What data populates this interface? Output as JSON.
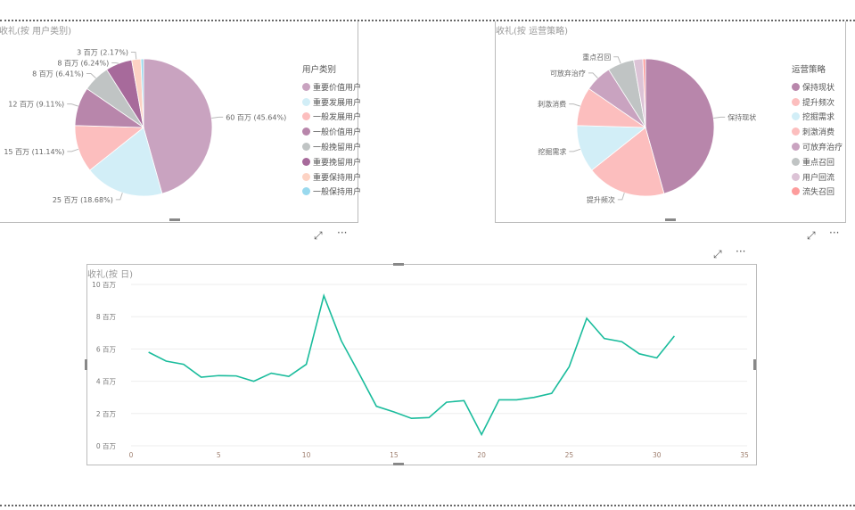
{
  "pie1": {
    "title": "收礼(按 用户类别)",
    "legend_title": "用户类别",
    "slices": [
      {
        "name": "重要价值用户",
        "value": 60,
        "pct": 45.64,
        "label": "60 百万 (45.64%)",
        "color": "#c9a3c0"
      },
      {
        "name": "重要发展用户",
        "value": 25,
        "pct": 18.68,
        "label": "25 百万 (18.68%)",
        "color": "#d2eef7"
      },
      {
        "name": "一般发展用户",
        "value": 15,
        "pct": 11.14,
        "label": "15 百万 (11.14%)",
        "color": "#fcbebe"
      },
      {
        "name": "一般价值用户",
        "value": 12,
        "pct": 9.11,
        "label": "12 百万 (9.11%)",
        "color": "#b886ab"
      },
      {
        "name": "一般挽留用户",
        "value": 8,
        "pct": 6.41,
        "label": "8 百万 (6.41%)",
        "color": "#c0c4c4"
      },
      {
        "name": "重要挽留用户",
        "value": 8,
        "pct": 6.24,
        "label": "8 百万 (6.24%)",
        "color": "#a76a9b"
      },
      {
        "name": "重要保持用户",
        "value": 3,
        "pct": 2.17,
        "label": "3 百万 (2.17%)",
        "color": "#fdd3c4"
      },
      {
        "name": "一般保持用户",
        "value": 1,
        "pct": 0.61,
        "label": "",
        "color": "#99d9ee"
      }
    ]
  },
  "pie2": {
    "title": "收礼(按 运营策略)",
    "legend_title": "运营策略",
    "slices": [
      {
        "name": "保持现状",
        "pct": 45.64,
        "label": "保持现状",
        "color": "#b886ab"
      },
      {
        "name": "提升频次",
        "pct": 18.68,
        "label": "提升频次",
        "color": "#fcbebe"
      },
      {
        "name": "挖掘需求",
        "pct": 11.14,
        "label": "挖掘需求",
        "color": "#d2eef7"
      },
      {
        "name": "刺激消费",
        "pct": 9.11,
        "label": "刺激消费",
        "color": "#fcbebe"
      },
      {
        "name": "可放弃治疗",
        "pct": 6.41,
        "label": "可放弃治疗",
        "color": "#c9a3c0"
      },
      {
        "name": "重点召回",
        "pct": 6.24,
        "label": "重点召回",
        "color": "#c0c4c4"
      },
      {
        "name": "用户回流",
        "pct": 2.17,
        "label": "",
        "color": "#dcc3d6"
      },
      {
        "name": "流失召回",
        "pct": 0.61,
        "label": "",
        "color": "#fd9c9c"
      }
    ]
  },
  "line": {
    "title": "收礼(按 日)",
    "color": "#1abc9c",
    "chart_data": {
      "type": "line",
      "xlim": [
        0,
        35
      ],
      "ylim": [
        0,
        10
      ],
      "xticks": [
        0,
        5,
        10,
        15,
        20,
        25,
        30,
        35
      ],
      "yticks": [
        "0 百万",
        "2 百万",
        "4 百万",
        "6 百万",
        "8 百万",
        "10 百万"
      ],
      "x": [
        1,
        2,
        3,
        4,
        5,
        6,
        7,
        8,
        9,
        10,
        11,
        12,
        13,
        14,
        15,
        16,
        17,
        18,
        19,
        20,
        21,
        22,
        23,
        24,
        25,
        26,
        27,
        28,
        29,
        30,
        31
      ],
      "y": [
        5.8,
        5.25,
        5.05,
        4.25,
        4.35,
        4.33,
        4.0,
        4.5,
        4.3,
        5.05,
        9.3,
        6.5,
        4.5,
        2.45,
        2.1,
        1.7,
        1.75,
        2.7,
        2.8,
        0.7,
        2.85,
        2.85,
        3.0,
        3.25,
        4.9,
        7.9,
        6.65,
        6.45,
        5.7,
        5.45,
        6.8
      ]
    }
  },
  "icons": {
    "focus": "⤢",
    "more": "···"
  }
}
